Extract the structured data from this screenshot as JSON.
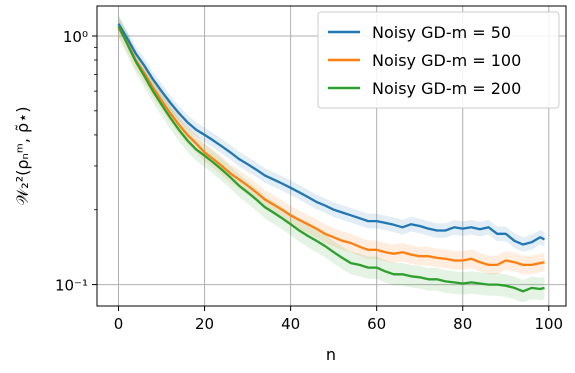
{
  "chart_data": {
    "type": "line",
    "title": "",
    "xlabel": "n",
    "ylabel": "𝒲₂²(ρₙᵐ, ρ̃⋆)",
    "yscale": "log",
    "xlim": [
      -5,
      104
    ],
    "ylim": [
      0.082,
      1.32
    ],
    "xticks": [
      0,
      20,
      40,
      60,
      80,
      100
    ],
    "xtick_labels": [
      "0",
      "20",
      "40",
      "60",
      "80",
      "100"
    ],
    "yticks": [
      0.1,
      1.0
    ],
    "ytick_labels": [
      "10⁻¹",
      "10⁰"
    ],
    "grid": true,
    "legend_position": "upper right",
    "x": [
      0,
      2,
      4,
      6,
      8,
      10,
      12,
      14,
      16,
      18,
      20,
      22,
      24,
      26,
      28,
      30,
      32,
      34,
      36,
      38,
      40,
      42,
      44,
      46,
      48,
      50,
      52,
      54,
      56,
      58,
      60,
      62,
      64,
      66,
      68,
      70,
      72,
      74,
      76,
      78,
      80,
      82,
      84,
      86,
      88,
      90,
      92,
      94,
      96,
      98,
      99
    ],
    "series": [
      {
        "name": "Noisy GD-m = 50",
        "color": "#1f77b4",
        "values": [
          1.12,
          0.98,
          0.85,
          0.76,
          0.67,
          0.6,
          0.54,
          0.49,
          0.45,
          0.42,
          0.4,
          0.38,
          0.36,
          0.34,
          0.32,
          0.305,
          0.29,
          0.275,
          0.265,
          0.255,
          0.245,
          0.235,
          0.225,
          0.215,
          0.208,
          0.2,
          0.195,
          0.19,
          0.185,
          0.18,
          0.18,
          0.177,
          0.174,
          0.17,
          0.175,
          0.172,
          0.168,
          0.165,
          0.165,
          0.17,
          0.168,
          0.17,
          0.167,
          0.17,
          0.16,
          0.16,
          0.15,
          0.145,
          0.148,
          0.155,
          0.152
        ]
      },
      {
        "name": "Noisy GD-m = 100",
        "color": "#ff7f0e",
        "values": [
          1.08,
          0.94,
          0.8,
          0.71,
          0.62,
          0.55,
          0.49,
          0.44,
          0.4,
          0.37,
          0.34,
          0.32,
          0.3,
          0.28,
          0.265,
          0.25,
          0.235,
          0.22,
          0.21,
          0.2,
          0.19,
          0.182,
          0.175,
          0.168,
          0.16,
          0.155,
          0.15,
          0.147,
          0.142,
          0.138,
          0.138,
          0.135,
          0.133,
          0.135,
          0.132,
          0.13,
          0.13,
          0.128,
          0.127,
          0.125,
          0.125,
          0.127,
          0.123,
          0.12,
          0.12,
          0.125,
          0.123,
          0.12,
          0.12,
          0.122,
          0.123
        ]
      },
      {
        "name": "Noisy GD-m = 200",
        "color": "#2ca02c",
        "values": [
          1.1,
          0.93,
          0.79,
          0.69,
          0.6,
          0.53,
          0.47,
          0.42,
          0.38,
          0.35,
          0.33,
          0.31,
          0.29,
          0.27,
          0.25,
          0.235,
          0.22,
          0.205,
          0.195,
          0.185,
          0.175,
          0.165,
          0.157,
          0.15,
          0.143,
          0.135,
          0.128,
          0.122,
          0.12,
          0.117,
          0.117,
          0.113,
          0.11,
          0.11,
          0.108,
          0.107,
          0.105,
          0.105,
          0.103,
          0.102,
          0.101,
          0.102,
          0.101,
          0.1,
          0.1,
          0.099,
          0.097,
          0.094,
          0.097,
          0.096,
          0.097
        ]
      }
    ]
  },
  "legend": {
    "items": [
      {
        "label": "Noisy GD-m = 50",
        "color": "#1f77b4"
      },
      {
        "label": "Noisy GD-m = 100",
        "color": "#ff7f0e"
      },
      {
        "label": "Noisy GD-m = 200",
        "color": "#2ca02c"
      }
    ]
  }
}
